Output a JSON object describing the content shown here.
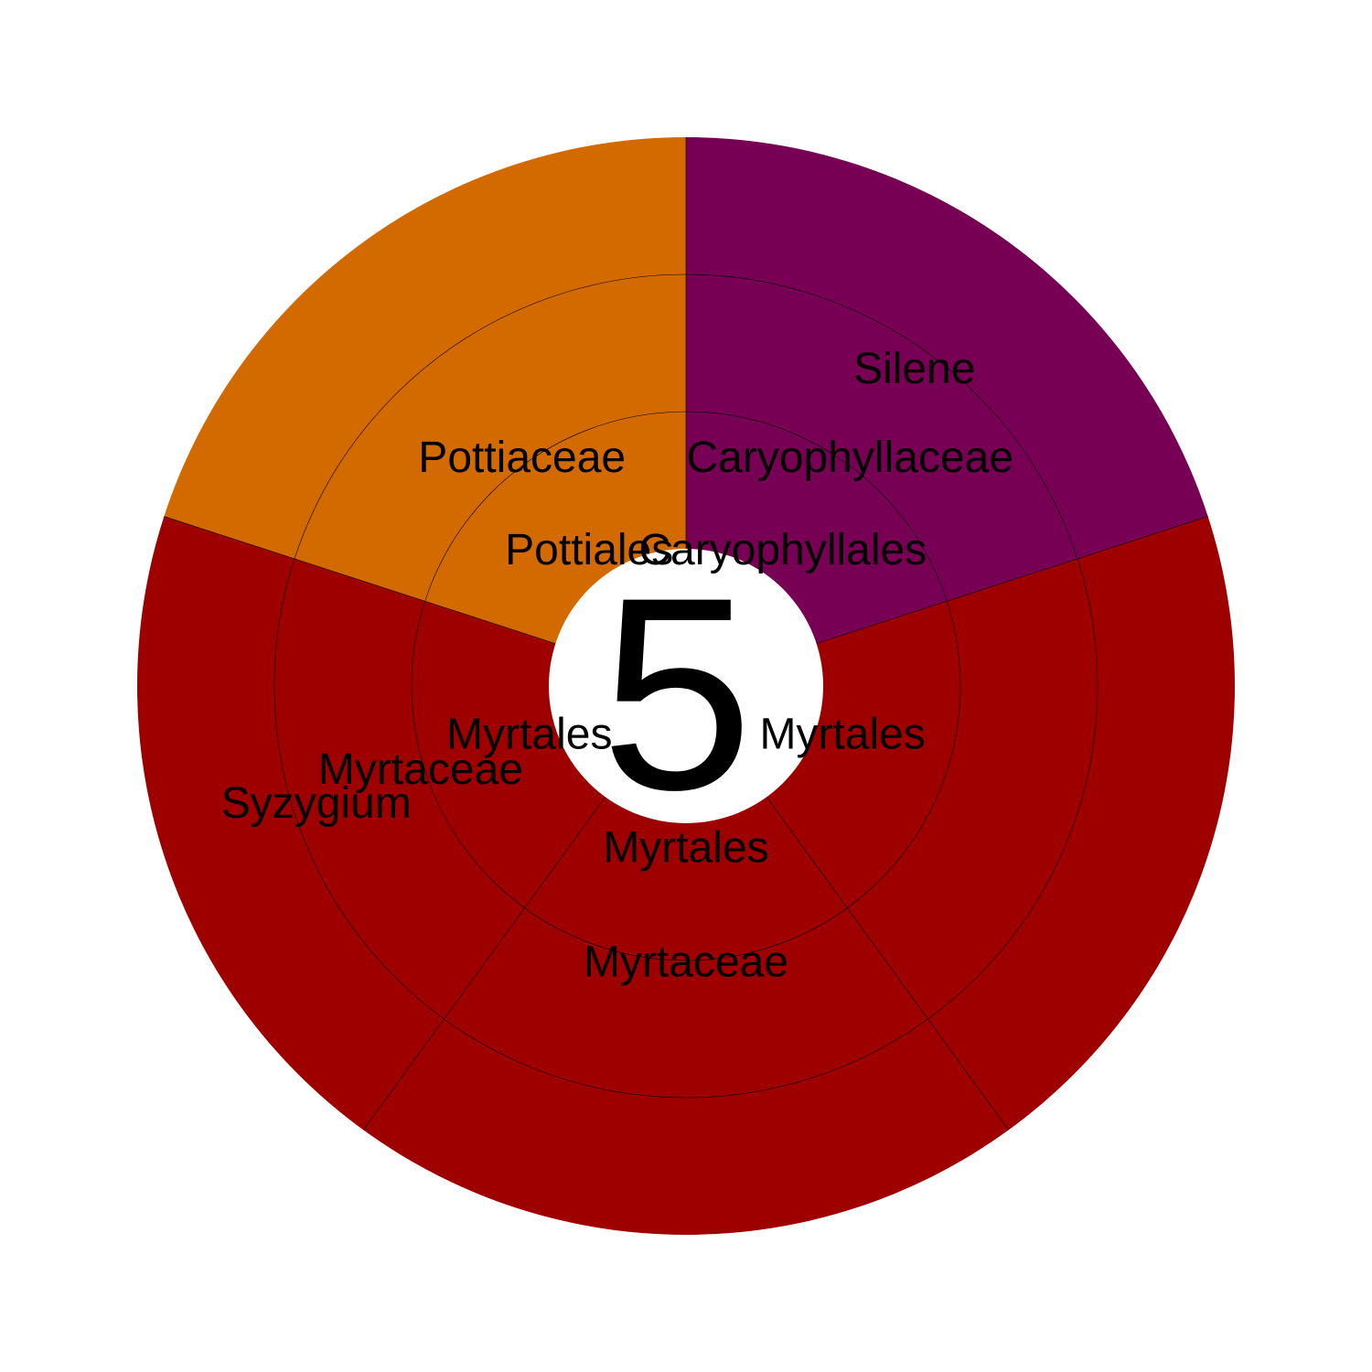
{
  "chart_data": {
    "type": "sunburst",
    "center_label": "5",
    "levels": [
      "order",
      "family",
      "genus"
    ],
    "colors": {
      "Caryophyllales": "#770055",
      "Myrtales": "#9e0000",
      "Pottiales": "#d36a00"
    },
    "leaves": [
      {
        "value": 1,
        "path": [
          "Caryophyllales",
          "Caryophyllaceae",
          "Silene"
        ],
        "color": "#770055",
        "shown_labels": [
          "Caryophyllales",
          "Caryophyllaceae",
          "Silene"
        ]
      },
      {
        "value": 1,
        "path": [
          "Myrtales"
        ],
        "color": "#9e0000",
        "shown_labels": [
          "Myrtales"
        ]
      },
      {
        "value": 1,
        "path": [
          "Myrtales",
          "Myrtaceae"
        ],
        "color": "#9e0000",
        "shown_labels": [
          "Myrtales",
          "Myrtaceae"
        ]
      },
      {
        "value": 1,
        "path": [
          "Myrtales",
          "Myrtaceae",
          "Syzygium"
        ],
        "color": "#9e0000",
        "shown_labels": [
          "Myrtales",
          "Myrtaceae",
          "Syzygium"
        ]
      },
      {
        "value": 1,
        "path": [
          "Pottiales",
          "Pottiaceae"
        ],
        "color": "#d36a00",
        "shown_labels": [
          "Pottiales",
          "Pottiaceae"
        ]
      }
    ]
  }
}
